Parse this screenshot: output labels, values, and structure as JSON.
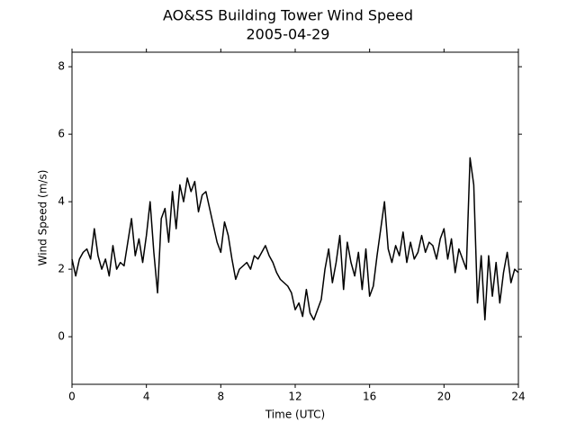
{
  "chart_data": {
    "type": "line",
    "title": "AO&SS Building Tower Wind Speed",
    "subtitle": "2005-04-29",
    "x_label": "Time (UTC)",
    "y_label": "Wind Speed (m/s)",
    "xlim": [
      0,
      24
    ],
    "ylim": [
      -1.41,
      8.43
    ],
    "xticks": [
      0,
      4,
      8,
      12,
      16,
      20,
      24
    ],
    "yticks": [
      0,
      2,
      4,
      6,
      8
    ],
    "grid": false,
    "series": [
      {
        "name": "Wind Speed",
        "color": "#000000",
        "x": [
          0.0,
          0.2,
          0.4,
          0.6,
          0.8,
          1.0,
          1.2,
          1.4,
          1.6,
          1.8,
          2.0,
          2.2,
          2.4,
          2.6,
          2.8,
          3.0,
          3.2,
          3.4,
          3.6,
          3.8,
          4.0,
          4.2,
          4.4,
          4.6,
          4.8,
          5.0,
          5.2,
          5.4,
          5.6,
          5.8,
          6.0,
          6.2,
          6.4,
          6.6,
          6.8,
          7.0,
          7.2,
          7.4,
          7.6,
          7.8,
          8.0,
          8.2,
          8.4,
          8.6,
          8.8,
          9.0,
          9.2,
          9.4,
          9.6,
          9.8,
          10.0,
          10.2,
          10.4,
          10.6,
          10.8,
          11.0,
          11.2,
          11.4,
          11.6,
          11.8,
          12.0,
          12.2,
          12.4,
          12.6,
          12.8,
          13.0,
          13.2,
          13.4,
          13.6,
          13.8,
          14.0,
          14.2,
          14.4,
          14.6,
          14.8,
          15.0,
          15.2,
          15.4,
          15.6,
          15.8,
          16.0,
          16.2,
          16.4,
          16.6,
          16.8,
          17.0,
          17.2,
          17.4,
          17.6,
          17.8,
          18.0,
          18.2,
          18.4,
          18.6,
          18.8,
          19.0,
          19.2,
          19.4,
          19.6,
          19.8,
          20.0,
          20.2,
          20.4,
          20.6,
          20.8,
          21.0,
          21.2,
          21.4,
          21.6,
          21.8,
          22.0,
          22.2,
          22.4,
          22.6,
          22.8,
          23.0,
          23.2,
          23.4,
          23.6,
          23.8,
          24.0
        ],
        "values": [
          2.3,
          1.8,
          2.3,
          2.5,
          2.6,
          2.3,
          3.2,
          2.4,
          2.0,
          2.3,
          1.8,
          2.7,
          2.0,
          2.2,
          2.1,
          2.8,
          3.5,
          2.4,
          2.9,
          2.2,
          3.0,
          4.0,
          2.5,
          1.3,
          3.5,
          3.8,
          2.8,
          4.3,
          3.2,
          4.5,
          4.0,
          4.7,
          4.3,
          4.6,
          3.7,
          4.2,
          4.3,
          3.8,
          3.3,
          2.8,
          2.5,
          3.4,
          3.0,
          2.3,
          1.7,
          2.0,
          2.1,
          2.2,
          2.0,
          2.4,
          2.3,
          2.5,
          2.7,
          2.4,
          2.2,
          1.9,
          1.7,
          1.6,
          1.5,
          1.3,
          0.8,
          1.0,
          0.6,
          1.4,
          0.7,
          0.5,
          0.8,
          1.1,
          2.0,
          2.6,
          1.6,
          2.2,
          3.0,
          1.4,
          2.8,
          2.2,
          1.8,
          2.5,
          1.4,
          2.6,
          1.2,
          1.5,
          2.4,
          3.2,
          4.0,
          2.6,
          2.2,
          2.7,
          2.4,
          3.1,
          2.2,
          2.8,
          2.3,
          2.5,
          3.0,
          2.5,
          2.8,
          2.7,
          2.3,
          2.9,
          3.2,
          2.3,
          2.9,
          1.9,
          2.6,
          2.3,
          2.0,
          5.3,
          4.5,
          1.0,
          2.4,
          0.5,
          2.4,
          1.2,
          2.2,
          1.0,
          1.9,
          2.5,
          1.6,
          2.0,
          1.9
        ]
      }
    ]
  }
}
